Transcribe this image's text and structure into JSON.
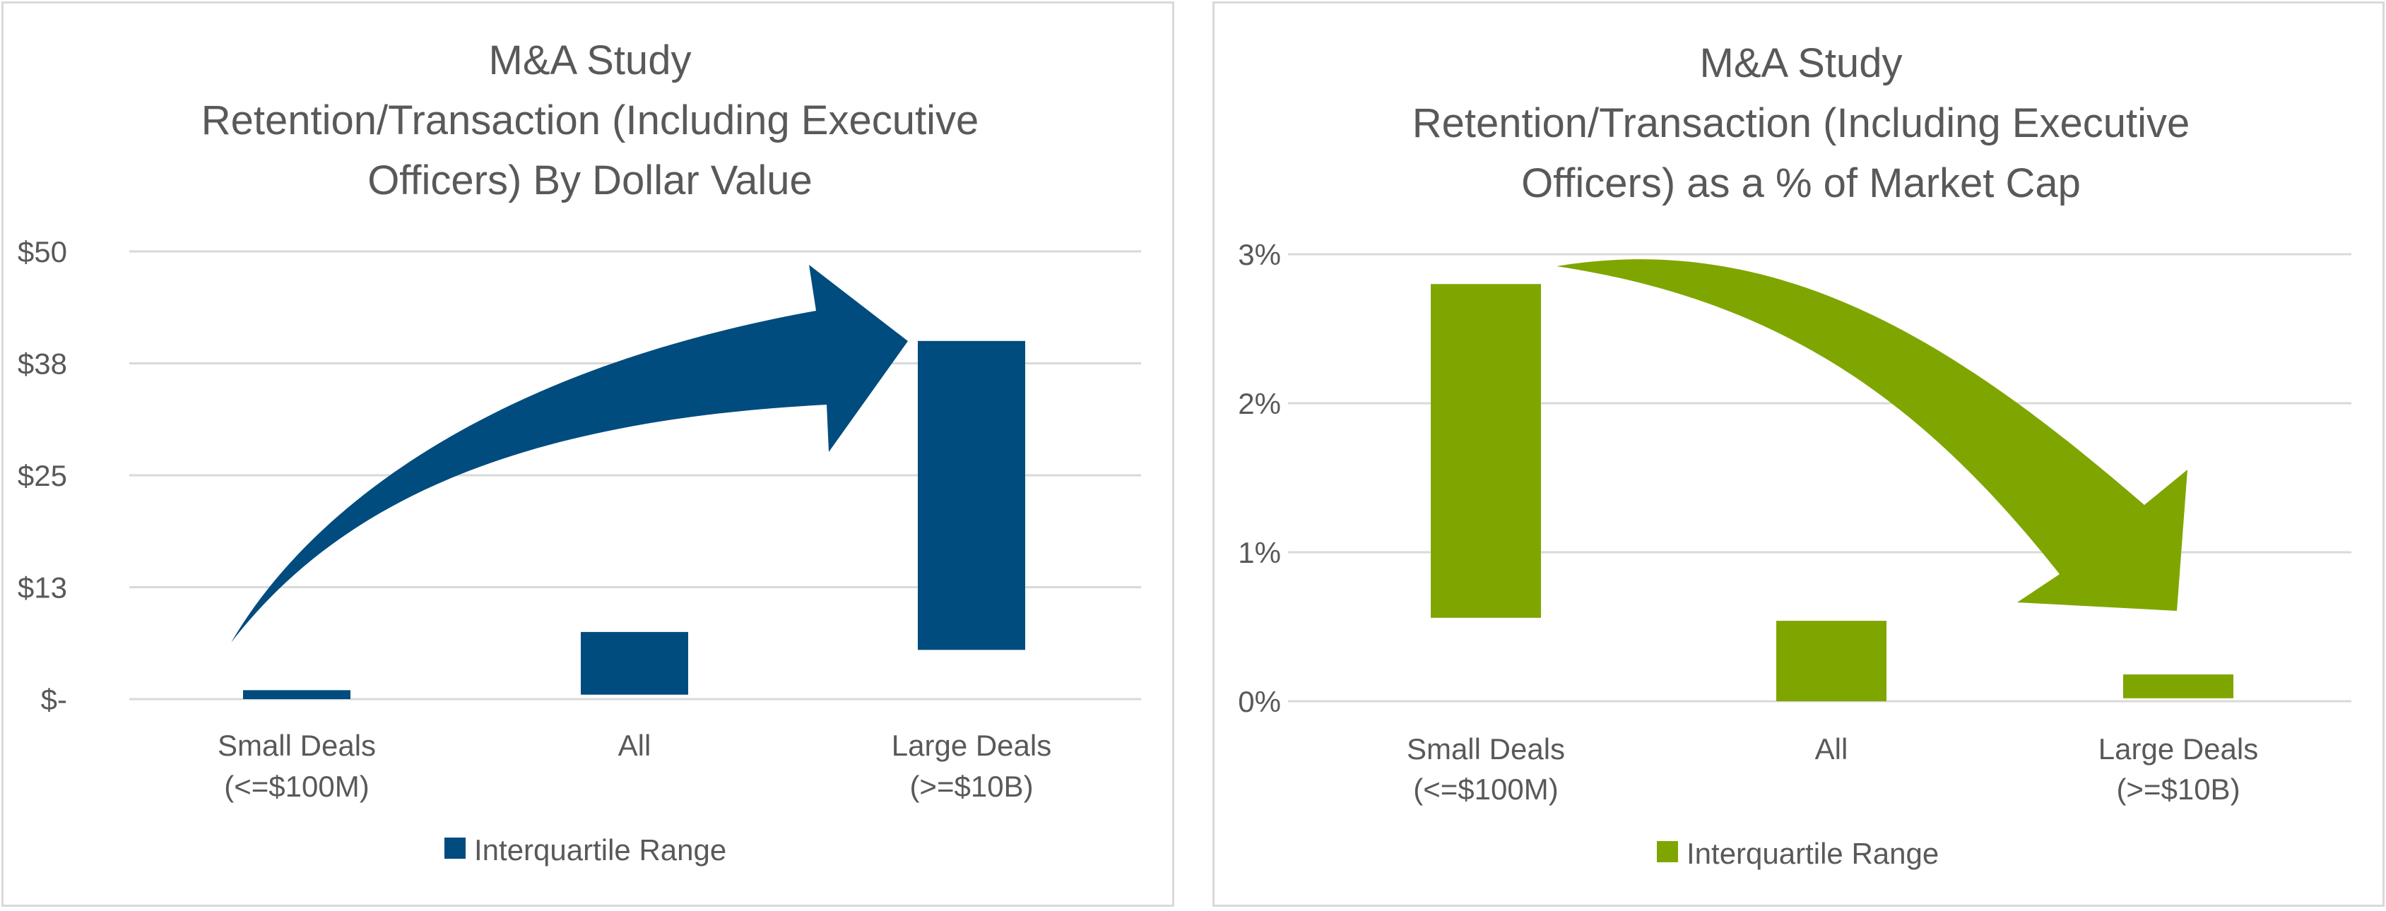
{
  "chart_data": [
    {
      "type": "floating-bar",
      "title_lines": [
        "M&A Study",
        "Retention/Transaction (Including Executive",
        "Officers) By Dollar Value"
      ],
      "y_ticks": [
        "$-",
        "$13",
        "$25",
        "$38",
        "$50"
      ],
      "ylim": [
        0,
        50
      ],
      "grid": true,
      "categories": [
        [
          "Small Deals",
          "(<=$100M)"
        ],
        [
          "All"
        ],
        [
          "Large Deals",
          "(>=$10B)"
        ]
      ],
      "series": [
        {
          "name": "Interquartile Range",
          "ranges": [
            [
              0,
              1
            ],
            [
              0.5,
              7.5
            ],
            [
              5.5,
              40
            ]
          ]
        }
      ],
      "legend_position": "bottom",
      "annotation": "curved arrow rising from Small Deals toward Large Deals",
      "color": "#004c7f"
    },
    {
      "type": "floating-bar",
      "title_lines": [
        "M&A Study",
        "Retention/Transaction (Including Executive",
        "Officers) as a % of Market Cap"
      ],
      "y_ticks": [
        "0%",
        "1%",
        "2%",
        "3%"
      ],
      "ylim": [
        0,
        3
      ],
      "grid": true,
      "categories": [
        [
          "Small Deals",
          "(<=$100M)"
        ],
        [
          "All"
        ],
        [
          "Large Deals",
          "(>=$10B)"
        ]
      ],
      "series": [
        {
          "name": "Interquartile Range",
          "ranges": [
            [
              0.56,
              2.8
            ],
            [
              0,
              0.54
            ],
            [
              0.02,
              0.18
            ]
          ]
        }
      ],
      "legend_position": "bottom",
      "annotation": "curved arrow descending from Small Deals toward Large Deals",
      "color": "#7fa600"
    }
  ]
}
